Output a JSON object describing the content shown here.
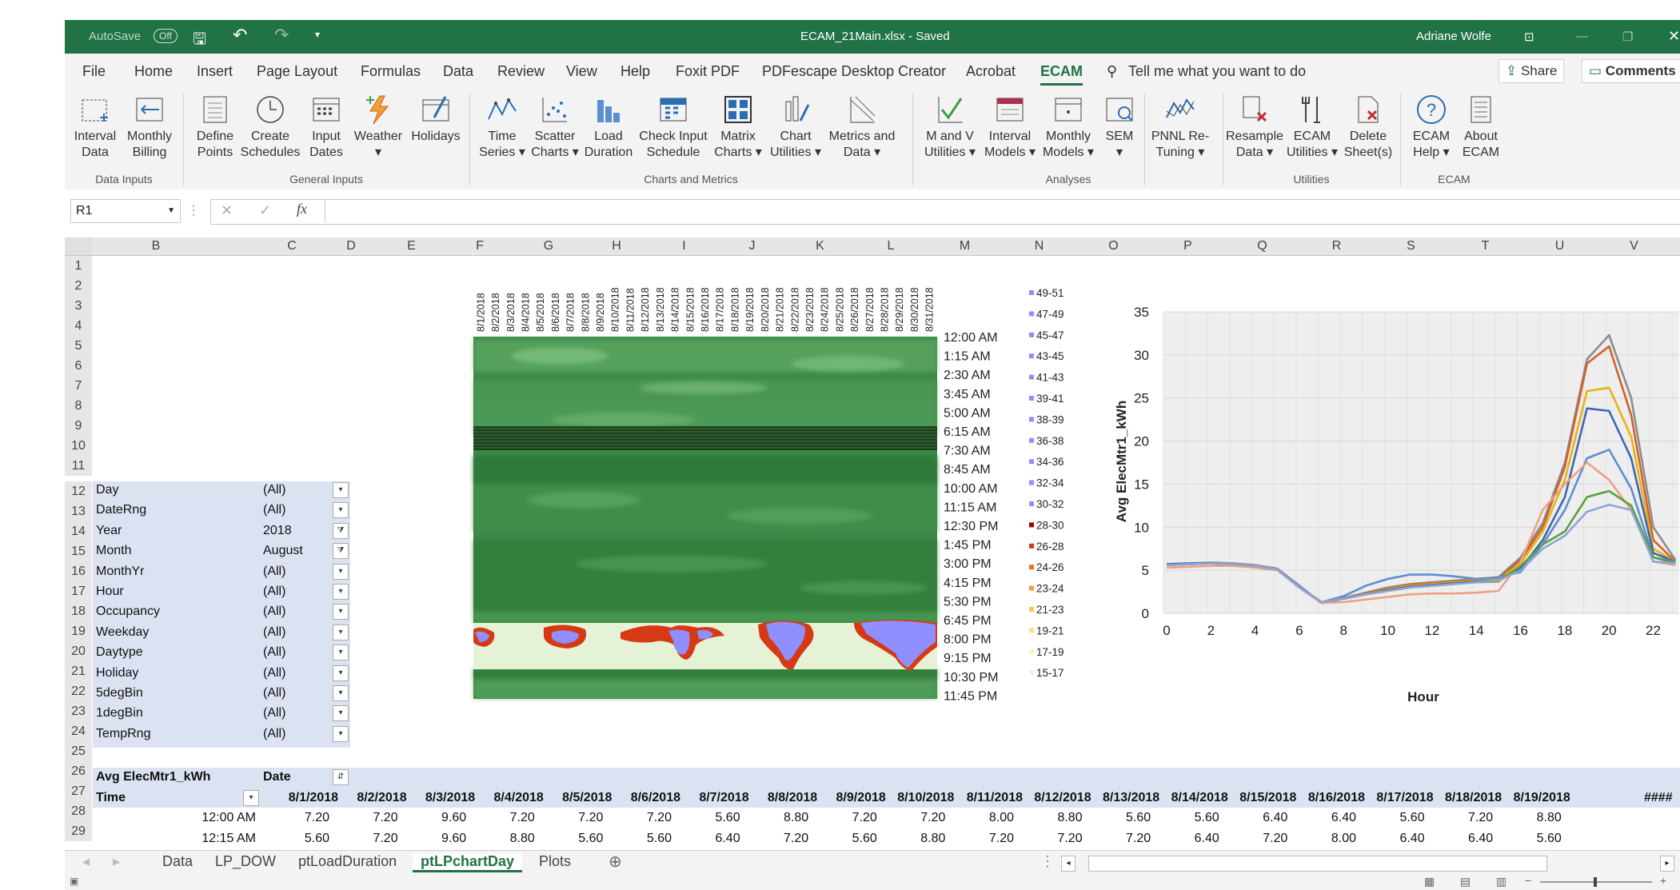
{
  "titlebar": {
    "autosave": "AutoSave",
    "autosave_state": "Off",
    "filename": "ECAM_21Main.xlsx - Saved",
    "user": "Adriane Wolfe"
  },
  "tabs": [
    "File",
    "Home",
    "Insert",
    "Page Layout",
    "Formulas",
    "Data",
    "Review",
    "View",
    "Help",
    "Foxit PDF",
    "PDFescape Desktop Creator",
    "Acrobat",
    "ECAM"
  ],
  "tell_me": "Tell me what you want to do",
  "share": "Share",
  "comments": "Comments",
  "ribbon": {
    "buttons": [
      {
        "l1": "Interval",
        "l2": "Data",
        "icon": "interval-data-icon"
      },
      {
        "l1": "Monthly",
        "l2": "Billing",
        "icon": "monthly-billing-icon"
      },
      {
        "l1": "Define",
        "l2": "Points",
        "icon": "define-points-icon"
      },
      {
        "l1": "Create",
        "l2": "Schedules",
        "icon": "clock-icon"
      },
      {
        "l1": "Input",
        "l2": "Dates",
        "icon": "calendar-icon"
      },
      {
        "l1": "Weather",
        "l2": "▾",
        "icon": "weather-icon"
      },
      {
        "l1": "Holidays",
        "l2": "",
        "icon": "holidays-icon"
      },
      {
        "l1": "Time",
        "l2": "Series ▾",
        "icon": "time-series-icon"
      },
      {
        "l1": "Scatter",
        "l2": "Charts ▾",
        "icon": "scatter-icon"
      },
      {
        "l1": "Load",
        "l2": "Duration",
        "icon": "load-duration-icon"
      },
      {
        "l1": "Check Input",
        "l2": "Schedule",
        "icon": "check-schedule-icon"
      },
      {
        "l1": "Matrix",
        "l2": "Charts ▾",
        "icon": "matrix-icon"
      },
      {
        "l1": "Chart",
        "l2": "Utilities ▾",
        "icon": "chart-utilities-icon"
      },
      {
        "l1": "Metrics and",
        "l2": "Data ▾",
        "icon": "metrics-icon"
      },
      {
        "l1": "M and V",
        "l2": "Utilities ▾",
        "icon": "mv-icon"
      },
      {
        "l1": "Interval",
        "l2": "Models ▾",
        "icon": "interval-models-icon"
      },
      {
        "l1": "Monthly",
        "l2": "Models ▾",
        "icon": "monthly-models-icon"
      },
      {
        "l1": "SEM",
        "l2": "▾",
        "icon": "sem-icon"
      },
      {
        "l1": "PNNL Re-",
        "l2": "Tuning ▾",
        "icon": "pnnl-icon"
      },
      {
        "l1": "Resample",
        "l2": "Data ▾",
        "icon": "resample-icon"
      },
      {
        "l1": "ECAM",
        "l2": "Utilities ▾",
        "icon": "tools-icon"
      },
      {
        "l1": "Delete",
        "l2": "Sheet(s)",
        "icon": "delete-sheet-icon"
      },
      {
        "l1": "ECAM",
        "l2": "Help ▾",
        "icon": "help-icon"
      },
      {
        "l1": "About",
        "l2": "ECAM",
        "icon": "about-icon"
      }
    ],
    "groups": [
      "Data Inputs",
      "General Inputs",
      "Charts and Metrics",
      "Analyses",
      "Utilities",
      "ECAM"
    ]
  },
  "namebox": "R1",
  "columns": [
    "B",
    "C",
    "D",
    "E",
    "F",
    "G",
    "H",
    "I",
    "J",
    "K",
    "L",
    "M",
    "N",
    "O",
    "P",
    "Q",
    "R",
    "S",
    "T",
    "U",
    "V"
  ],
  "rows": [
    "1",
    "2",
    "3",
    "4",
    "5",
    "6",
    "7",
    "8",
    "9",
    "10",
    "11",
    "12",
    "13",
    "14",
    "15",
    "16",
    "17",
    "18",
    "19",
    "20",
    "21",
    "22",
    "23",
    "24",
    "25",
    "26",
    "27",
    "28",
    "29"
  ],
  "pivot_filters": [
    {
      "field": "Day",
      "value": "(All)",
      "filtered": false
    },
    {
      "field": "DateRng",
      "value": "(All)",
      "filtered": false
    },
    {
      "field": "Year",
      "value": "2018",
      "filtered": true
    },
    {
      "field": "Month",
      "value": "August",
      "filtered": true
    },
    {
      "field": "MonthYr",
      "value": "(All)",
      "filtered": false
    },
    {
      "field": "Hour",
      "value": "(All)",
      "filtered": false
    },
    {
      "field": "Occupancy",
      "value": "(All)",
      "filtered": false
    },
    {
      "field": "Weekday",
      "value": "(All)",
      "filtered": false
    },
    {
      "field": "Daytype",
      "value": "(All)",
      "filtered": false
    },
    {
      "field": "Holiday",
      "value": "(All)",
      "filtered": false
    },
    {
      "field": "5degBin",
      "value": "(All)",
      "filtered": false
    },
    {
      "field": "1degBin",
      "value": "(All)",
      "filtered": false
    },
    {
      "field": "TempRng",
      "value": "(All)",
      "filtered": false
    }
  ],
  "heatmap": {
    "dates": [
      "8/1/2018",
      "8/2/2018",
      "8/3/2018",
      "8/4/2018",
      "8/5/2018",
      "8/6/2018",
      "8/7/2018",
      "8/8/2018",
      "8/9/2018",
      "8/10/2018",
      "8/11/2018",
      "8/12/2018",
      "8/13/2018",
      "8/14/2018",
      "8/15/2018",
      "8/16/2018",
      "8/17/2018",
      "8/18/2018",
      "8/19/2018",
      "8/20/2018",
      "8/21/2018",
      "8/22/2018",
      "8/23/2018",
      "8/24/2018",
      "8/25/2018",
      "8/26/2018",
      "8/27/2018",
      "8/28/2018",
      "8/29/2018",
      "8/30/2018",
      "8/31/2018"
    ],
    "times": [
      "12:00 AM",
      "1:15 AM",
      "2:30 AM",
      "3:45 AM",
      "5:00 AM",
      "6:15 AM",
      "7:30 AM",
      "8:45 AM",
      "10:00 AM",
      "11:15 AM",
      "12:30 PM",
      "1:45 PM",
      "3:00 PM",
      "4:15 PM",
      "5:30 PM",
      "6:45 PM",
      "8:00 PM",
      "9:15 PM",
      "10:30 PM",
      "11:45 PM"
    ],
    "legend": [
      {
        "label": "49-51",
        "color": "#8f8fff"
      },
      {
        "label": "47-49",
        "color": "#8f8fff"
      },
      {
        "label": "45-47",
        "color": "#8f8fff"
      },
      {
        "label": "43-45",
        "color": "#8f8fff"
      },
      {
        "label": "41-43",
        "color": "#8f8fff"
      },
      {
        "label": "39-41",
        "color": "#8f8fff"
      },
      {
        "label": "38-39",
        "color": "#8f8fff"
      },
      {
        "label": "36-38",
        "color": "#8f8fff"
      },
      {
        "label": "34-36",
        "color": "#8f8fff"
      },
      {
        "label": "32-34",
        "color": "#8f8fff"
      },
      {
        "label": "30-32",
        "color": "#8f8fff"
      },
      {
        "label": "28-30",
        "color": "#a00000"
      },
      {
        "label": "26-28",
        "color": "#d63a14"
      },
      {
        "label": "24-26",
        "color": "#ee6e2a"
      },
      {
        "label": "23-24",
        "color": "#f2a03c"
      },
      {
        "label": "21-23",
        "color": "#f6c654"
      },
      {
        "label": "19-21",
        "color": "#fae08a"
      },
      {
        "label": "17-19",
        "color": "#fdf3b8"
      },
      {
        "label": "15-17",
        "color": "#eef3dc"
      }
    ]
  },
  "chart_data": {
    "type": "line",
    "xlabel": "Hour",
    "ylabel": "Avg ElecMtr1_kWh",
    "xlim": [
      0,
      23
    ],
    "ylim": [
      0,
      35
    ],
    "xticks": [
      0,
      2,
      4,
      6,
      8,
      10,
      12,
      14,
      16,
      18,
      20,
      22
    ],
    "yticks": [
      0,
      5,
      10,
      15,
      20,
      25,
      30,
      35
    ],
    "x": [
      0,
      1,
      2,
      3,
      4,
      5,
      6,
      7,
      8,
      9,
      10,
      11,
      12,
      13,
      14,
      15,
      16,
      17,
      18,
      19,
      20,
      21,
      22,
      23
    ],
    "series": [
      {
        "color": "#8c8c8c",
        "values": [
          5.7,
          5.8,
          5.9,
          5.8,
          5.6,
          5.2,
          3.2,
          1.2,
          1.8,
          2.4,
          3.0,
          3.4,
          3.6,
          3.8,
          4.0,
          4.2,
          6.5,
          10.5,
          17.5,
          29.5,
          32.3,
          25.0,
          10.0,
          6.2
        ]
      },
      {
        "color": "#d4602a",
        "values": [
          5.6,
          5.7,
          5.8,
          5.7,
          5.5,
          5.1,
          3.0,
          1.2,
          1.7,
          2.3,
          2.9,
          3.3,
          3.5,
          3.7,
          3.9,
          4.0,
          6.2,
          10.0,
          17.0,
          29.0,
          31.0,
          23.0,
          8.5,
          6.0
        ]
      },
      {
        "color": "#e8b30f",
        "values": [
          5.6,
          5.7,
          5.8,
          5.7,
          5.5,
          5.1,
          3.0,
          1.2,
          1.7,
          2.2,
          2.8,
          3.2,
          3.4,
          3.6,
          3.8,
          3.9,
          5.8,
          9.5,
          15.5,
          25.8,
          26.2,
          20.5,
          7.5,
          6.0
        ]
      },
      {
        "color": "#3a66b5",
        "values": [
          5.7,
          5.8,
          5.8,
          5.7,
          5.5,
          5.1,
          3.0,
          1.2,
          1.7,
          2.2,
          2.7,
          3.1,
          3.3,
          3.5,
          3.7,
          3.8,
          5.2,
          8.5,
          13.5,
          23.8,
          23.5,
          18.0,
          7.0,
          6.0
        ]
      },
      {
        "color": "#5e8fcf",
        "values": [
          5.6,
          5.7,
          5.8,
          5.7,
          5.5,
          5.1,
          3.1,
          1.3,
          2.0,
          3.2,
          4.0,
          4.5,
          4.5,
          4.3,
          4.0,
          4.2,
          4.8,
          8.0,
          12.0,
          18.0,
          19.0,
          14.5,
          6.5,
          6.0
        ]
      },
      {
        "color": "#f0a080",
        "values": [
          5.3,
          5.4,
          5.5,
          5.5,
          5.3,
          5.0,
          3.0,
          1.2,
          1.3,
          1.6,
          1.9,
          2.2,
          2.3,
          2.3,
          2.4,
          2.6,
          6.0,
          12.0,
          15.0,
          17.5,
          15.5,
          12.0,
          6.0,
          5.6
        ]
      },
      {
        "color": "#5aa03a",
        "values": [
          5.6,
          5.7,
          5.8,
          5.7,
          5.5,
          5.1,
          3.0,
          1.3,
          1.7,
          2.2,
          2.6,
          3.0,
          3.2,
          3.4,
          3.6,
          3.7,
          5.5,
          8.0,
          9.5,
          13.5,
          14.2,
          12.5,
          6.5,
          5.8
        ]
      },
      {
        "color": "#8fa4d8",
        "values": [
          5.6,
          5.7,
          5.8,
          5.7,
          5.5,
          5.1,
          3.0,
          1.3,
          1.7,
          2.2,
          2.6,
          3.0,
          3.2,
          3.4,
          3.6,
          3.8,
          5.0,
          7.5,
          9.0,
          11.8,
          12.6,
          12.0,
          6.0,
          5.8
        ]
      }
    ]
  },
  "pivot_table": {
    "value_label": "Avg ElecMtr1_kWh",
    "col_field": "Date",
    "row_field": "Time",
    "date_headers": [
      "8/1/2018",
      "8/2/2018",
      "8/3/2018",
      "8/4/2018",
      "8/5/2018",
      "8/6/2018",
      "8/7/2018",
      "8/8/2018",
      "8/9/2018",
      "8/10/2018",
      "8/11/2018",
      "8/12/2018",
      "8/13/2018",
      "8/14/2018",
      "8/15/2018",
      "8/16/2018",
      "8/17/2018",
      "8/18/2018",
      "8/19/2018",
      "####"
    ],
    "rows": [
      {
        "time": "12:00 AM",
        "values": [
          "7.20",
          "7.20",
          "9.60",
          "7.20",
          "7.20",
          "7.20",
          "5.60",
          "8.80",
          "7.20",
          "7.20",
          "8.00",
          "8.80",
          "5.60",
          "5.60",
          "6.40",
          "6.40",
          "5.60",
          "7.20",
          "8.80"
        ]
      },
      {
        "time": "12:15 AM",
        "values": [
          "5.60",
          "7.20",
          "9.60",
          "8.80",
          "5.60",
          "5.60",
          "6.40",
          "7.20",
          "5.60",
          "8.80",
          "7.20",
          "7.20",
          "7.20",
          "6.40",
          "7.20",
          "8.00",
          "6.40",
          "6.40",
          "5.60"
        ]
      }
    ]
  },
  "sheets": [
    "Data",
    "LP_DOW",
    "ptLoadDuration",
    "ptLPchartDay",
    "Plots"
  ],
  "active_sheet": "ptLPchartDay"
}
